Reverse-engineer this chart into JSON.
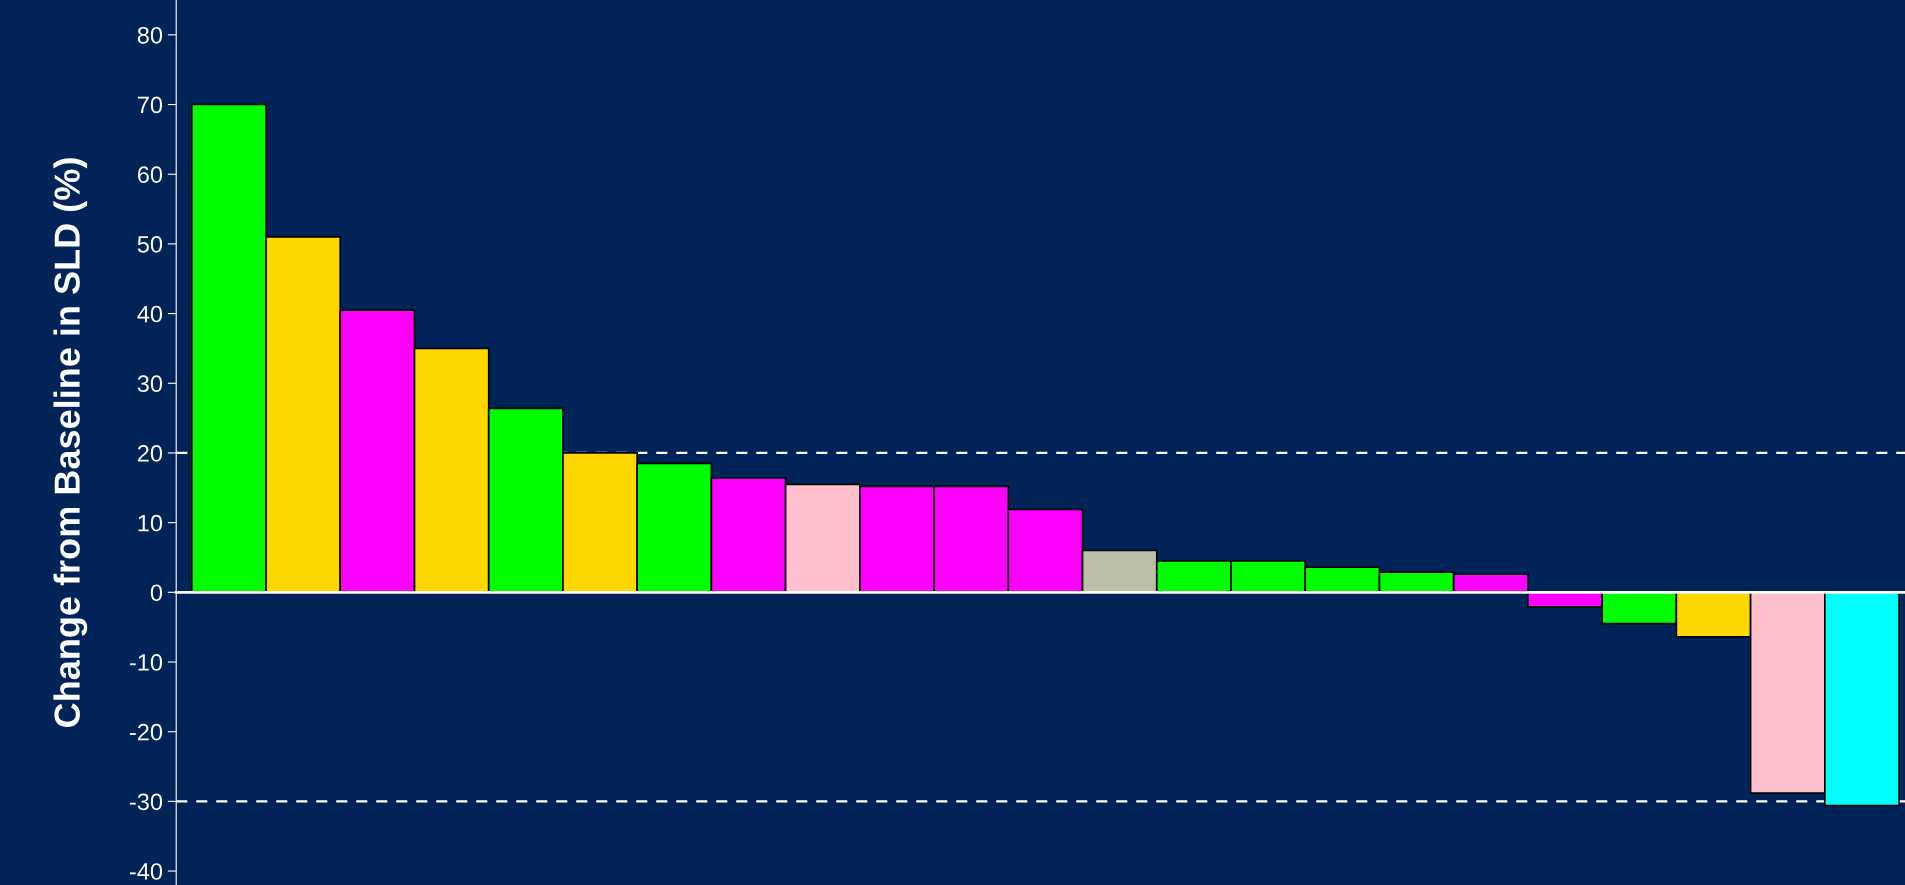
{
  "chart_data": {
    "type": "bar",
    "ylabel": "Change from Baseline in SLD (%)",
    "categories": [
      null,
      null,
      null,
      null,
      null,
      null,
      null,
      null,
      null,
      null,
      null,
      null,
      null,
      null,
      null,
      null,
      null,
      null,
      null,
      null,
      null,
      null,
      null
    ],
    "values": [
      70,
      51,
      40.5,
      35,
      26.4,
      20,
      18.5,
      16.4,
      15.5,
      15.2,
      15.2,
      11.9,
      6,
      4.5,
      4.5,
      3.6,
      2.9,
      2.6,
      -2.1,
      -4.5,
      -6.4,
      -28.8,
      -30.6
    ],
    "colors": [
      "#00ff00",
      "#ffd700",
      "#ff00ff",
      "#ffd700",
      "#00ff00",
      "#ffd700",
      "#00ff00",
      "#ff00ff",
      "#ffc0cb",
      "#ff00ff",
      "#ff00ff",
      "#ff00ff",
      "#bcbfa8",
      "#00ff00",
      "#00ff00",
      "#00ff00",
      "#00ff00",
      "#ff00ff",
      "#ff00ff",
      "#00ff00",
      "#ffd700",
      "#ffc0cb",
      "#00ffff"
    ],
    "ylim": [
      -42,
      85
    ],
    "yticks": [
      -40,
      -30,
      -20,
      -10,
      0,
      10,
      20,
      30,
      40,
      50,
      60,
      70,
      80
    ],
    "ref_lines": [
      {
        "axis": "y",
        "value": 20,
        "color": "#ffffff",
        "line_style": "dashed"
      },
      {
        "axis": "y",
        "value": -30,
        "color": "#ffffff",
        "line_style": "dashed"
      }
    ],
    "grid": false,
    "legend": false
  }
}
